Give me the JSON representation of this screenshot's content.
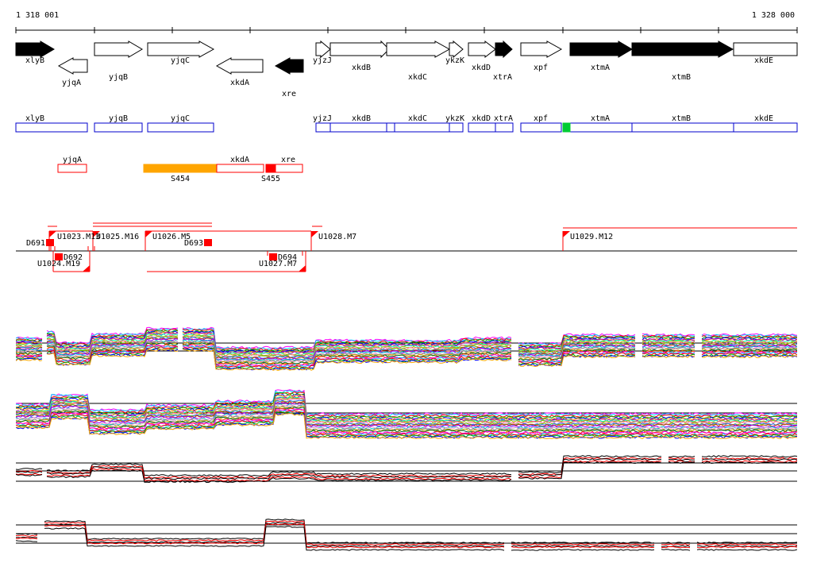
{
  "coordinates": {
    "start": "1 318 001",
    "end": "1 328 000"
  },
  "genes_top": [
    {
      "name": "xlyB",
      "strand": "+",
      "filled": true
    },
    {
      "name": "yjqA",
      "strand": "-",
      "filled": false
    },
    {
      "name": "yjqB",
      "strand": "+",
      "filled": false
    },
    {
      "name": "yjqC",
      "strand": "+",
      "filled": false
    },
    {
      "name": "xkdA",
      "strand": "-",
      "filled": false
    },
    {
      "name": "xre",
      "strand": "-",
      "filled": true
    },
    {
      "name": "yjzJ",
      "strand": "+",
      "filled": false
    },
    {
      "name": "xkdB",
      "strand": "+",
      "filled": false
    },
    {
      "name": "xkdC",
      "strand": "+",
      "filled": false
    },
    {
      "name": "ykzK",
      "strand": "+",
      "filled": false
    },
    {
      "name": "xkdD",
      "strand": "+",
      "filled": false
    },
    {
      "name": "xtrA",
      "strand": "+",
      "filled": true
    },
    {
      "name": "xpf",
      "strand": "+",
      "filled": false
    },
    {
      "name": "xtmA",
      "strand": "+",
      "filled": true
    },
    {
      "name": "xtmB",
      "strand": "+",
      "filled": true
    },
    {
      "name": "xkdE",
      "strand": "+",
      "filled": false
    }
  ],
  "blue_boxes": [
    "xlyB",
    "yjqB",
    "yjqC",
    "yjzJ",
    "xkdB",
    "xkdC",
    "ykzK",
    "xkdD",
    "xtrA",
    "xpf",
    "xtmA",
    "xtmB",
    "xkdE"
  ],
  "red_boxes": [
    {
      "label": "yjqA",
      "sublabel": ""
    },
    {
      "label": "xkdA",
      "sublabel": "S454"
    },
    {
      "label": "xre",
      "sublabel": "S455"
    }
  ],
  "segments": [
    "U1023.M13",
    "U1025.M16",
    "U1026.M5",
    "U1028.M7",
    "U1029.M12",
    "U1024.M19",
    "U1027.M7",
    "D691",
    "D692",
    "D693",
    "D694"
  ],
  "colors": {
    "accent_red": "#ff0000",
    "accent_orange": "#ffa500",
    "accent_green": "#00cc33",
    "accent_blue": "#0000cc"
  }
}
